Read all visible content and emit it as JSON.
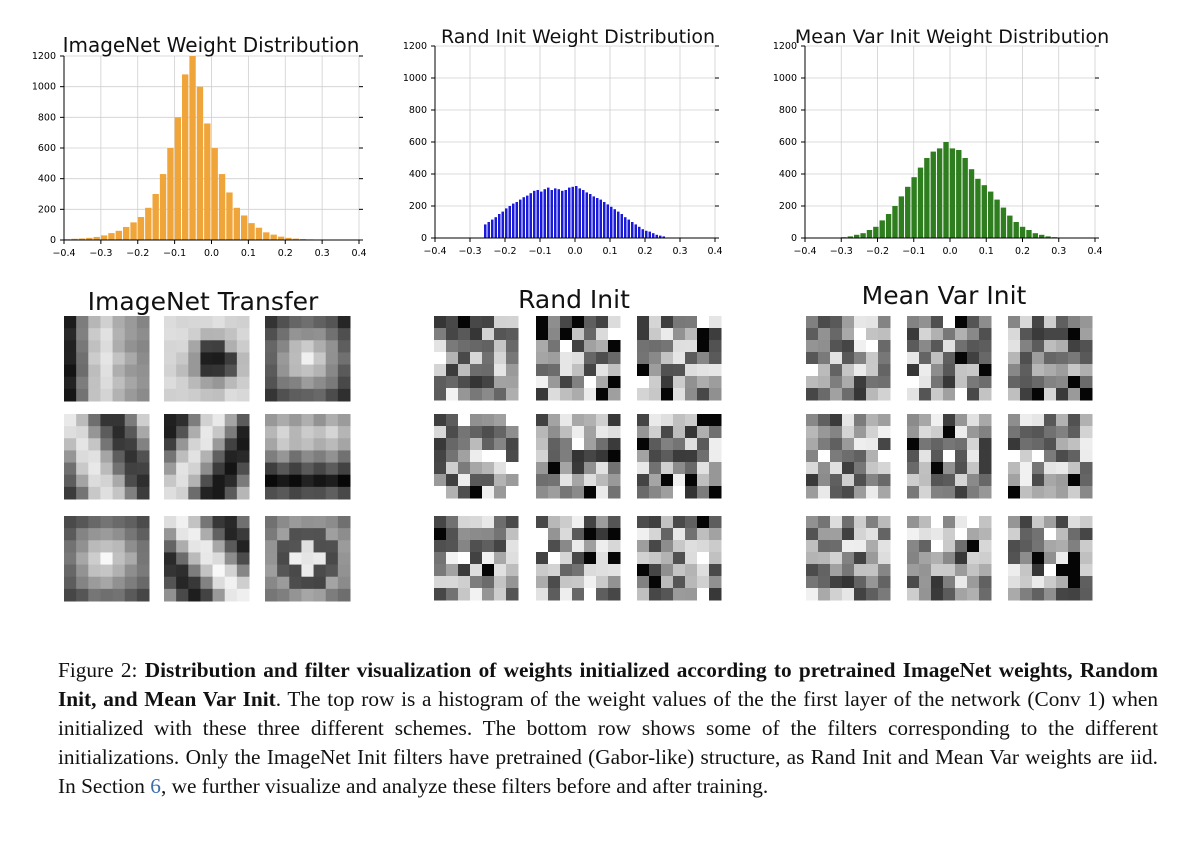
{
  "chart_data": [
    {
      "type": "bar",
      "title": "ImageNet Weight Distribution",
      "xlim": [
        -0.4,
        0.4
      ],
      "ylim": [
        0,
        1200
      ],
      "xticks": [
        "-0.4",
        "-0.3",
        "-0.2",
        "-0.1",
        "0.0",
        "0.1",
        "0.2",
        "0.3",
        "0.4"
      ],
      "yticks": [
        "0",
        "200",
        "400",
        "600",
        "800",
        "1000",
        "1200"
      ],
      "grid": true,
      "color": "#f0a53a",
      "bin_start": -0.4,
      "bin_width": 0.02,
      "values": [
        5,
        8,
        10,
        14,
        20,
        30,
        45,
        60,
        85,
        115,
        150,
        210,
        300,
        430,
        600,
        800,
        1080,
        1200,
        1000,
        760,
        600,
        430,
        310,
        210,
        160,
        110,
        80,
        50,
        35,
        22,
        14,
        9,
        6,
        4,
        3,
        2,
        1,
        1,
        0,
        0
      ]
    },
    {
      "type": "bar",
      "title": "Rand Init Weight Distribution",
      "xlim": [
        -0.4,
        0.4
      ],
      "ylim": [
        0,
        1200
      ],
      "xticks": [
        "-0.4",
        "-0.3",
        "-0.2",
        "-0.1",
        "0.0",
        "0.1",
        "0.2",
        "0.3",
        "0.4"
      ],
      "yticks": [
        "0",
        "200",
        "400",
        "600",
        "800",
        "1000",
        "1200"
      ],
      "grid": true,
      "color": "#1a1adb",
      "bin_start": -0.26,
      "bin_width": 0.01,
      "values": [
        85,
        100,
        115,
        130,
        150,
        165,
        185,
        200,
        215,
        225,
        240,
        255,
        265,
        280,
        295,
        300,
        290,
        305,
        315,
        300,
        310,
        305,
        295,
        300,
        315,
        320,
        325,
        310,
        300,
        285,
        275,
        260,
        250,
        240,
        225,
        210,
        195,
        180,
        165,
        150,
        130,
        115,
        100,
        85,
        70,
        55,
        45,
        40,
        30,
        20,
        15,
        10
      ]
    },
    {
      "type": "bar",
      "title": "Mean Var Init Weight Distribution",
      "xlim": [
        -0.4,
        0.4
      ],
      "ylim": [
        0,
        1200
      ],
      "xticks": [
        "-0.4",
        "-0.3",
        "-0.2",
        "-0.1",
        "0.0",
        "0.1",
        "0.2",
        "0.3",
        "0.4"
      ],
      "yticks": [
        "0",
        "200",
        "400",
        "600",
        "800",
        "1000",
        "1200"
      ],
      "grid": true,
      "color": "#2e7d1e",
      "bin_start": -0.3,
      "bin_width": 0.0176,
      "values": [
        5,
        10,
        20,
        30,
        50,
        70,
        110,
        150,
        200,
        260,
        320,
        380,
        440,
        500,
        540,
        560,
        600,
        560,
        550,
        500,
        430,
        370,
        330,
        290,
        240,
        190,
        140,
        100,
        70,
        50,
        30,
        20,
        10,
        5
      ]
    }
  ],
  "panels": [
    {
      "title": "ImageNet Transfer"
    },
    {
      "title": "Rand Init"
    },
    {
      "title": "Mean Var Init"
    }
  ],
  "caption": {
    "figure_label": "Figure 2:",
    "bold_text": "Distribution and filter visualization of weights initialized according to pretrained ImageNet weights, Random Init, and Mean Var Init",
    "text_part1": ". The top row is a histogram of the weight values of the the first layer of the network (Conv 1) when initialized with these three different schemes. The bottom row shows some of the filters corresponding to the different initializations. Only the ImageNet Init filters have pretrained (Gabor-like) structure, as Rand Init and Mean Var weights are iid. In Section ",
    "section_ref": "6",
    "text_part2": ", we further visualize and analyze these filters before and after training."
  }
}
